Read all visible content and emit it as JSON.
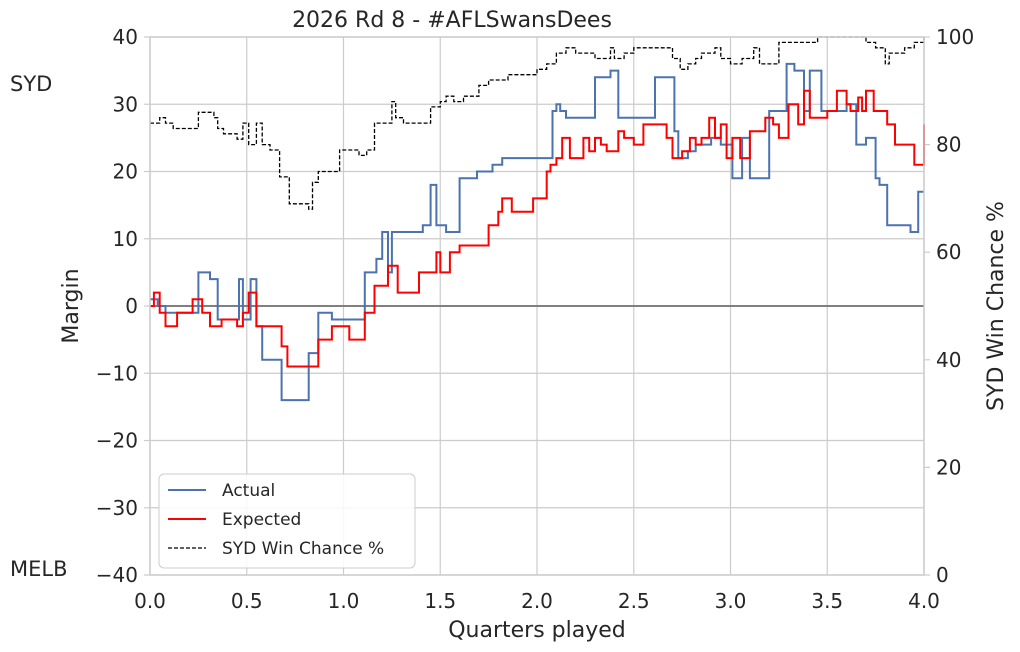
{
  "chart_data": {
    "type": "line",
    "title": "2026 Rd 8 - #AFLSwansDees",
    "xlabel": "Quarters played",
    "ylabel": "Margin",
    "ylabel_right": "SYD Win Chance %",
    "xlim": [
      0,
      4
    ],
    "ylim": [
      -40,
      40
    ],
    "ylim_right": [
      0,
      100
    ],
    "xticks": [
      "0.0",
      "0.5",
      "1.0",
      "1.5",
      "2.0",
      "2.5",
      "3.0",
      "3.5",
      "4.0"
    ],
    "yticks": [
      "−40",
      "−30",
      "−20",
      "−10",
      "0",
      "10",
      "20",
      "30",
      "40"
    ],
    "yticks_right": [
      "0",
      "20",
      "40",
      "60",
      "80",
      "100"
    ],
    "top_team_label": "SYD",
    "bottom_team_label": "MELB",
    "grid": true,
    "legend_position": "lower-left",
    "series": [
      {
        "name": "Actual",
        "color": "#4c72b0",
        "style": "step",
        "x": [
          0.0,
          0.04,
          0.08,
          0.12,
          0.18,
          0.25,
          0.31,
          0.35,
          0.46,
          0.48,
          0.52,
          0.55,
          0.58,
          0.68,
          0.72,
          0.82,
          0.87,
          0.94,
          0.97,
          1.11,
          1.14,
          1.17,
          1.2,
          1.23,
          1.25,
          1.32,
          1.41,
          1.45,
          1.48,
          1.53,
          1.6,
          1.65,
          1.69,
          1.77,
          1.82,
          1.85,
          1.88,
          2.08,
          2.1,
          2.12,
          2.15,
          2.2,
          2.3,
          2.38,
          2.42,
          2.52,
          2.61,
          2.71,
          2.73,
          2.75,
          2.78,
          2.82,
          2.86,
          2.9,
          2.95,
          3.01,
          3.06,
          3.1,
          3.13,
          3.2,
          3.29,
          3.33,
          3.38,
          3.41,
          3.47,
          3.53,
          3.6,
          3.65,
          3.7,
          3.75,
          3.77,
          3.81,
          3.93,
          3.97,
          4.0
        ],
        "y": [
          1,
          0,
          -1,
          -1,
          -1,
          5,
          4,
          -2,
          4,
          -2,
          4,
          -3,
          -8,
          -14,
          -14,
          -7,
          -1,
          -2,
          -2,
          5,
          5,
          7,
          11,
          5,
          11,
          11,
          12,
          18,
          12,
          11,
          19,
          19,
          20,
          21,
          22,
          22,
          22,
          29,
          30,
          29,
          28,
          28,
          34,
          35,
          28,
          28,
          34,
          26,
          22,
          22,
          23,
          24,
          24,
          25,
          24,
          19,
          25,
          19,
          19,
          29,
          36,
          35,
          29,
          35,
          29,
          29,
          30,
          24,
          25,
          19,
          18,
          12,
          11,
          17,
          17
        ]
      },
      {
        "name": "Expected",
        "color": "#ff0000",
        "style": "step",
        "x": [
          0.0,
          0.02,
          0.05,
          0.08,
          0.14,
          0.22,
          0.27,
          0.31,
          0.37,
          0.45,
          0.48,
          0.51,
          0.55,
          0.57,
          0.68,
          0.71,
          0.82,
          0.87,
          0.91,
          0.94,
          0.98,
          1.03,
          1.07,
          1.11,
          1.16,
          1.2,
          1.23,
          1.28,
          1.39,
          1.43,
          1.48,
          1.5,
          1.55,
          1.6,
          1.66,
          1.75,
          1.8,
          1.82,
          1.87,
          1.92,
          1.95,
          1.98,
          2.01,
          2.05,
          2.07,
          2.1,
          2.13,
          2.17,
          2.2,
          2.24,
          2.27,
          2.3,
          2.33,
          2.36,
          2.42,
          2.45,
          2.5,
          2.55,
          2.67,
          2.7,
          2.75,
          2.79,
          2.82,
          2.85,
          2.89,
          2.92,
          2.95,
          2.98,
          3.01,
          3.05,
          3.1,
          3.15,
          3.18,
          3.22,
          3.25,
          3.3,
          3.35,
          3.38,
          3.41,
          3.45,
          3.5,
          3.55,
          3.6,
          3.62,
          3.66,
          3.68,
          3.7,
          3.74,
          3.81,
          3.85,
          3.95,
          4.0
        ],
        "y": [
          0,
          2,
          -1,
          -3,
          -1,
          1,
          -1,
          -3,
          -2,
          -3,
          -1,
          2,
          -3,
          -3,
          -6,
          -9,
          -9,
          -5,
          -5,
          -3,
          -3,
          -5,
          -5,
          -1,
          3,
          3,
          6,
          2,
          5,
          5,
          8,
          5,
          8,
          9,
          9,
          12,
          14,
          16,
          14,
          14,
          14,
          16,
          16,
          20,
          21,
          22,
          25,
          22,
          22,
          25,
          23,
          25,
          24,
          23,
          26,
          25,
          24,
          27,
          25,
          22,
          23,
          25,
          24,
          25,
          28,
          25,
          27,
          22,
          25,
          22,
          26,
          26,
          28,
          27,
          25,
          30,
          27,
          32,
          28,
          28,
          29,
          32,
          30,
          29,
          31,
          29,
          32,
          29,
          27,
          24,
          21,
          27
        ]
      },
      {
        "name": "SYD Win Chance %",
        "color": "#000000",
        "style": "step-dashed",
        "axis": "right",
        "x": [
          0.0,
          0.05,
          0.08,
          0.12,
          0.22,
          0.25,
          0.28,
          0.33,
          0.35,
          0.38,
          0.45,
          0.48,
          0.51,
          0.55,
          0.58,
          0.62,
          0.67,
          0.72,
          0.82,
          0.84,
          0.87,
          0.94,
          0.98,
          1.04,
          1.08,
          1.12,
          1.16,
          1.22,
          1.25,
          1.27,
          1.31,
          1.45,
          1.5,
          1.53,
          1.57,
          1.62,
          1.7,
          1.75,
          1.85,
          1.9,
          2.0,
          2.05,
          2.1,
          2.15,
          2.2,
          2.3,
          2.38,
          2.4,
          2.45,
          2.5,
          2.6,
          2.7,
          2.74,
          2.78,
          2.82,
          2.85,
          2.92,
          2.95,
          3.0,
          3.06,
          3.12,
          3.15,
          3.25,
          3.3,
          3.35,
          3.45,
          3.55,
          3.6,
          3.65,
          3.7,
          3.75,
          3.8,
          3.82,
          3.85,
          3.9,
          3.95,
          4.0
        ],
        "y": [
          84,
          85,
          84,
          83,
          83,
          86,
          86,
          85,
          83,
          82,
          81,
          84,
          80,
          84,
          80,
          79,
          74,
          69,
          68,
          73,
          75,
          75,
          79,
          79,
          78,
          79,
          84,
          84,
          88,
          85,
          84,
          87,
          88,
          89,
          88,
          89,
          91,
          92,
          93,
          93,
          94,
          95,
          97,
          98,
          97,
          96,
          98,
          96,
          97,
          98,
          98,
          96,
          94,
          95,
          96,
          97,
          98,
          96,
          95,
          96,
          98,
          95,
          99,
          99,
          99,
          100,
          100,
          100,
          100,
          99,
          98,
          95,
          97,
          97,
          98,
          99,
          100
        ]
      }
    ]
  }
}
